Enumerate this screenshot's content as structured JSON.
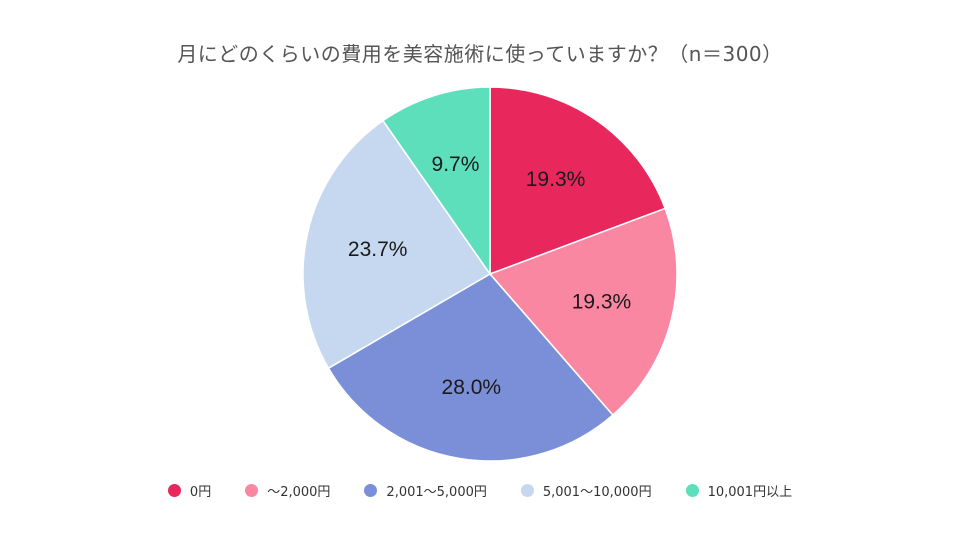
{
  "chart_data": {
    "type": "pie",
    "title": "月にどのくらいの費用を美容施術に使っていますか？（n＝300）",
    "categories": [
      "0円",
      "～2,000円",
      "2,001～5,000円",
      "5,001～10,000円",
      "10,001円以上"
    ],
    "values": [
      19.3,
      19.3,
      28.0,
      23.7,
      9.7
    ],
    "labels": [
      "19.3%",
      "19.3%",
      "28.0%",
      "23.7%",
      "9.7%"
    ],
    "colors": [
      "#E8275C",
      "#FA87A2",
      "#7B8FD8",
      "#C6D8F0",
      "#5EDFBC"
    ],
    "legend_position": "bottom",
    "start": "top",
    "direction": "clockwise"
  }
}
